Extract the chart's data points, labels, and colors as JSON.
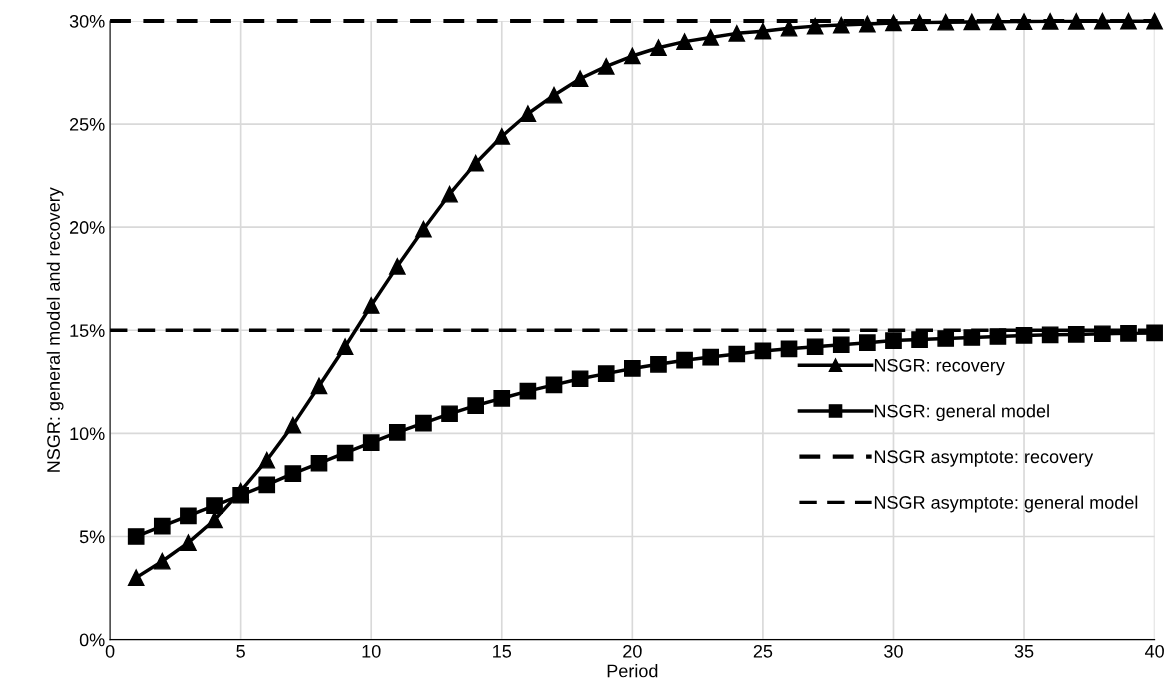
{
  "chart_data": {
    "type": "line",
    "xlabel": "Period",
    "ylabel": "NSGR: general model and recovery",
    "x": [
      1,
      2,
      3,
      4,
      5,
      6,
      7,
      8,
      9,
      10,
      11,
      12,
      13,
      14,
      15,
      16,
      17,
      18,
      19,
      20,
      21,
      22,
      23,
      24,
      25,
      26,
      27,
      28,
      29,
      30,
      31,
      32,
      33,
      34,
      35,
      36,
      37,
      38,
      39,
      40
    ],
    "series": [
      {
        "name": "NSGR: recovery",
        "color": "#000000",
        "marker": "triangle",
        "line_style": "solid",
        "values": [
          3.0,
          3.8,
          4.7,
          5.8,
          7.2,
          8.7,
          10.4,
          12.3,
          14.2,
          16.2,
          18.1,
          19.9,
          21.6,
          23.1,
          24.4,
          25.5,
          26.4,
          27.2,
          27.8,
          28.3,
          28.7,
          29.0,
          29.2,
          29.4,
          29.5,
          29.65,
          29.75,
          29.8,
          29.85,
          29.9,
          29.92,
          29.94,
          29.95,
          29.96,
          29.97,
          29.98,
          29.98,
          29.99,
          29.99,
          29.99
        ]
      },
      {
        "name": "NSGR: general model",
        "color": "#000000",
        "marker": "square",
        "line_style": "solid",
        "values": [
          5.0,
          5.5,
          6.0,
          6.5,
          7.0,
          7.5,
          8.05,
          8.55,
          9.05,
          9.55,
          10.05,
          10.5,
          10.95,
          11.35,
          11.7,
          12.05,
          12.35,
          12.65,
          12.9,
          13.15,
          13.35,
          13.55,
          13.7,
          13.85,
          14.0,
          14.1,
          14.2,
          14.3,
          14.4,
          14.5,
          14.55,
          14.6,
          14.65,
          14.7,
          14.75,
          14.78,
          14.8,
          14.83,
          14.85,
          14.87
        ]
      }
    ],
    "ref_lines": [
      {
        "axis": "y",
        "value": 30,
        "label": "NSGR asymptote: recovery",
        "color": "#000000",
        "line_style": "dashed"
      },
      {
        "axis": "y",
        "value": 15,
        "label": "NSGR asymptote: general model",
        "color": "#000000",
        "line_style": "dashed"
      }
    ],
    "xlim": [
      0,
      40
    ],
    "xticks": [
      0,
      5,
      10,
      15,
      20,
      25,
      30,
      35,
      40
    ],
    "ylim": [
      0,
      30
    ],
    "yticks": [
      {
        "value": 0,
        "label": "0%"
      },
      {
        "value": 5,
        "label": "5%"
      },
      {
        "value": 10,
        "label": "10%"
      },
      {
        "value": 15,
        "label": "15%"
      },
      {
        "value": 20,
        "label": "20%"
      },
      {
        "value": 25,
        "label": "25%"
      },
      {
        "value": 30,
        "label": "30%"
      }
    ],
    "grid": true,
    "legend": "right"
  }
}
